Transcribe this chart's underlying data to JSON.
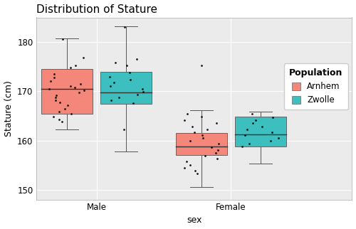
{
  "title": "Distribution of Stature",
  "xlabel": "sex",
  "ylabel": "Stature (cm)",
  "ylim": [
    148,
    185
  ],
  "yticks": [
    150,
    160,
    170,
    180
  ],
  "categories": [
    "Male",
    "Female"
  ],
  "populations": [
    "Arnhem",
    "Zwolle"
  ],
  "colors": {
    "Arnhem": "#F4877A",
    "Zwolle": "#3DBFBF"
  },
  "boxplot_data": {
    "Male": {
      "Arnhem": {
        "whislo": 162.2,
        "q1": 165.5,
        "med": 170.5,
        "q3": 174.5,
        "whishi": 180.7,
        "pts": [
          180.6,
          176.8,
          175.3,
          174.8,
          173.5,
          172.8,
          172.1,
          171.5,
          171.0,
          170.8,
          170.5,
          170.2,
          169.8,
          169.2,
          168.7,
          168.2,
          167.7,
          167.1,
          166.5,
          165.9,
          165.4,
          164.9,
          164.3,
          163.8
        ]
      },
      "Zwolle": {
        "whislo": 157.8,
        "q1": 167.5,
        "med": 169.8,
        "q3": 174.0,
        "whishi": 183.2,
        "pts": [
          183.0,
          176.5,
          175.8,
          175.2,
          173.8,
          173.0,
          172.4,
          171.8,
          171.1,
          170.5,
          169.9,
          169.3,
          168.8,
          168.2,
          167.6,
          162.2
        ]
      }
    },
    "Female": {
      "Arnhem": {
        "whislo": 150.6,
        "q1": 157.0,
        "med": 158.8,
        "q3": 161.5,
        "whishi": 166.2,
        "pts_outlier": [
          175.2
        ],
        "pts": [
          165.5,
          164.8,
          164.1,
          163.5,
          162.9,
          162.3,
          161.7,
          161.1,
          160.5,
          159.9,
          159.3,
          158.7,
          158.1,
          157.5,
          156.9,
          156.3,
          155.7,
          155.1,
          154.5,
          153.9,
          153.3
        ]
      },
      "Zwolle": {
        "whislo": 155.3,
        "q1": 158.8,
        "med": 161.2,
        "q3": 164.8,
        "whishi": 165.8,
        "pts_outlier": [],
        "pts": [
          165.4,
          164.7,
          164.1,
          163.5,
          162.9,
          162.3,
          161.7,
          161.1,
          160.5,
          159.9,
          159.3,
          158.8
        ]
      }
    }
  },
  "panel_bg": "#EBEBEB",
  "background_color": "#FFFFFF",
  "grid_color": "#FFFFFF",
  "box_width": 0.38,
  "offsets": {
    "Arnhem": -0.22,
    "Zwolle": 0.22
  },
  "legend_title": "Population",
  "title_fontsize": 11,
  "axis_fontsize": 9,
  "tick_fontsize": 8.5,
  "legend_fontsize": 9
}
